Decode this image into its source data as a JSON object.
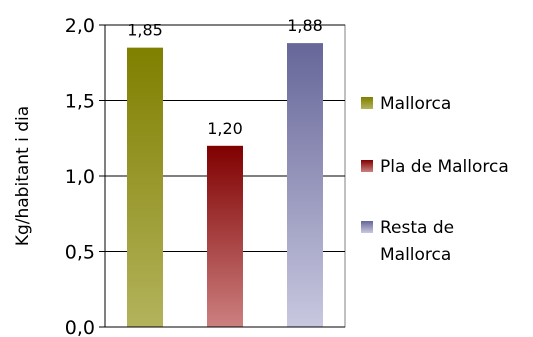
{
  "chart_data": {
    "type": "bar",
    "categories": [
      "Mallorca",
      "Pla de Mallorca",
      "Resta de Mallorca"
    ],
    "values": [
      1.85,
      1.2,
      1.88
    ],
    "data_labels": [
      "1,85",
      "1,20",
      "1,88"
    ],
    "ylabel": "Kg/habitant i dia",
    "ylim": [
      0,
      2.0
    ],
    "yticks": [
      0,
      0.5,
      1.0,
      1.5,
      2.0
    ],
    "ytick_labels": [
      "0,0",
      "0,5",
      "1,0",
      "1,5",
      "2,0"
    ],
    "grid": true,
    "legend_position": "right",
    "legend": [
      {
        "label_lines": [
          "Mallorca"
        ],
        "color_top": "#7f7f00",
        "color_bottom": "#b3b35c"
      },
      {
        "label_lines": [
          "Pla de Mallorca"
        ],
        "color_top": "#800000",
        "color_bottom": "#cc8080"
      },
      {
        "label_lines": [
          "Resta de",
          "Mallorca"
        ],
        "color_top": "#666699",
        "color_bottom": "#c8c8e0"
      }
    ]
  }
}
